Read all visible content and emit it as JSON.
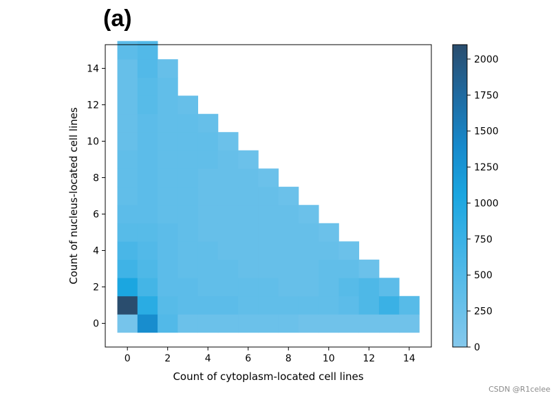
{
  "panel_label": "(a)",
  "watermark": "CSDN @R1celee",
  "colors": {
    "cmap": [
      "#85c8ec",
      "#61bee9",
      "#3fb3e6",
      "#1ba6e0",
      "#1789cb",
      "#1f6aa0",
      "#2a4d6e"
    ]
  },
  "chart_data": {
    "type": "heatmap",
    "title": "",
    "xlabel": "Count of cytoplasm-located cell lines",
    "ylabel": "Count of nucleus-located cell lines",
    "xlim": [
      -0.6,
      15.6
    ],
    "ylim": [
      -0.8,
      15.8
    ],
    "xticks": [
      0,
      2,
      4,
      6,
      8,
      10,
      12,
      14
    ],
    "yticks": [
      0,
      2,
      4,
      6,
      8,
      10,
      12,
      14
    ],
    "xtick_labels": [
      "0",
      "2",
      "4",
      "6",
      "8",
      "10",
      "12",
      "14"
    ],
    "ytick_labels": [
      "0",
      "2",
      "4",
      "6",
      "8",
      "10",
      "12",
      "14"
    ],
    "colorbar": {
      "min": 0,
      "max": 2100,
      "ticks": [
        0,
        250,
        500,
        750,
        1000,
        1250,
        1500,
        1750,
        2000
      ],
      "tick_labels": [
        "0",
        "250",
        "500",
        "750",
        "1000",
        "1250",
        "1500",
        "1750",
        "2000"
      ]
    },
    "grid": [
      [
        150,
        1350,
        500,
        250,
        250,
        250,
        250,
        250,
        250,
        200,
        200,
        200,
        200,
        200,
        200
      ],
      [
        2100,
        900,
        450,
        400,
        400,
        400,
        350,
        350,
        350,
        350,
        350,
        400,
        550,
        750,
        450
      ],
      [
        1050,
        650,
        400,
        400,
        350,
        350,
        350,
        350,
        300,
        300,
        350,
        450,
        550,
        400
      ],
      [
        700,
        550,
        400,
        350,
        350,
        350,
        300,
        300,
        300,
        300,
        350,
        350,
        250
      ],
      [
        600,
        500,
        400,
        350,
        350,
        300,
        300,
        300,
        300,
        300,
        300,
        250
      ],
      [
        450,
        450,
        400,
        350,
        300,
        300,
        300,
        300,
        300,
        300,
        250
      ],
      [
        400,
        400,
        350,
        350,
        300,
        300,
        300,
        300,
        300,
        250
      ],
      [
        350,
        400,
        350,
        350,
        300,
        300,
        300,
        300,
        250
      ],
      [
        350,
        400,
        350,
        350,
        300,
        300,
        300,
        250
      ],
      [
        350,
        400,
        350,
        350,
        350,
        300,
        250
      ],
      [
        300,
        400,
        350,
        350,
        350,
        250
      ],
      [
        300,
        400,
        350,
        350,
        300
      ],
      [
        300,
        450,
        350,
        300
      ],
      [
        300,
        450,
        350
      ],
      [
        300,
        500,
        300
      ],
      [
        400,
        500
      ]
    ]
  }
}
